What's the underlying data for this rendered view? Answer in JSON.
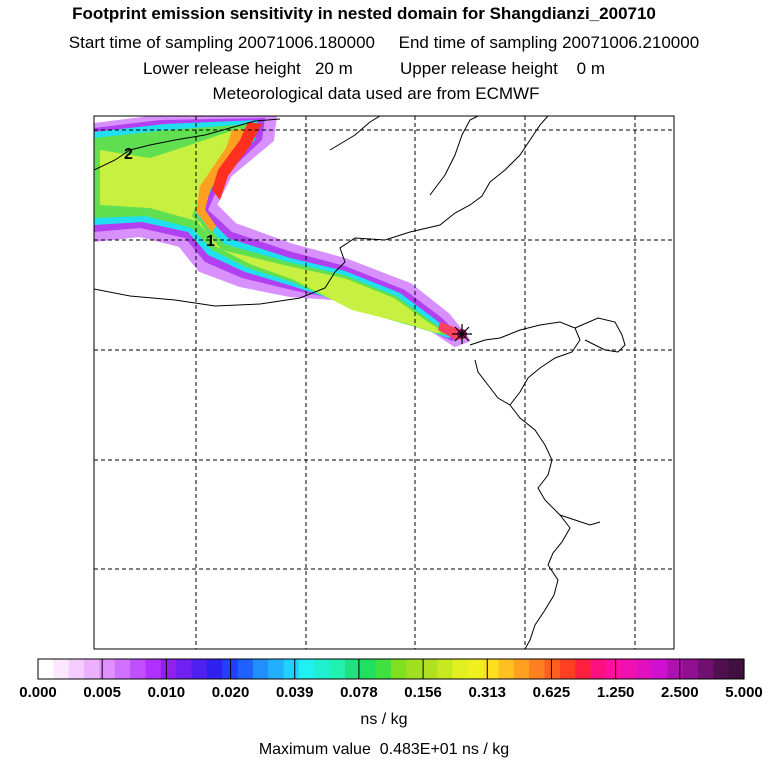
{
  "header": {
    "title": "Footprint emission sensitivity in nested domain for Shangdianzi_200710",
    "sampling_line": "Start time of sampling 20071006.180000     End time of sampling 20071006.210000",
    "height_line": "Lower release height   20 m          Upper release height    0 m",
    "met_line": "Meteorological data used are from ECMWF"
  },
  "map": {
    "labels": [
      "2",
      "1"
    ],
    "station_marker": "asterisk-icon",
    "plume_colors": [
      "#d080ff",
      "#a020f0",
      "#00e0ff",
      "#40e060",
      "#c0f040",
      "#ffff40",
      "#ffb000",
      "#ff2020"
    ]
  },
  "colorbar": {
    "ticks": [
      "0.000",
      "0.005",
      "0.010",
      "0.020",
      "0.039",
      "0.078",
      "0.156",
      "0.313",
      "0.625",
      "1.250",
      "2.500",
      "5.000"
    ],
    "colors": [
      "#ffffff",
      "#fbe8ff",
      "#f4ccff",
      "#ecb0ff",
      "#e090ff",
      "#d070ff",
      "#c050ff",
      "#b030ff",
      "#9020f0",
      "#7020f0",
      "#5020f0",
      "#3020f0",
      "#2040ff",
      "#2060ff",
      "#2090ff",
      "#20b0ff",
      "#20d0ff",
      "#20f0f0",
      "#20f0d0",
      "#20f0b0",
      "#20e080",
      "#20e060",
      "#40e040",
      "#80e020",
      "#a0e020",
      "#b0e020",
      "#c8e820",
      "#e0f020",
      "#f0f020",
      "#ffe020",
      "#ffc020",
      "#ffa020",
      "#ff8020",
      "#ff6020",
      "#ff4020",
      "#ff2040",
      "#ff1080",
      "#ff10a0",
      "#f010b0",
      "#e010c0",
      "#d010d0",
      "#b010b0",
      "#901090",
      "#701070",
      "#501050",
      "#401040"
    ],
    "units": "ns / kg",
    "max_label": "Maximum value  0.483E+01 ns / kg"
  }
}
